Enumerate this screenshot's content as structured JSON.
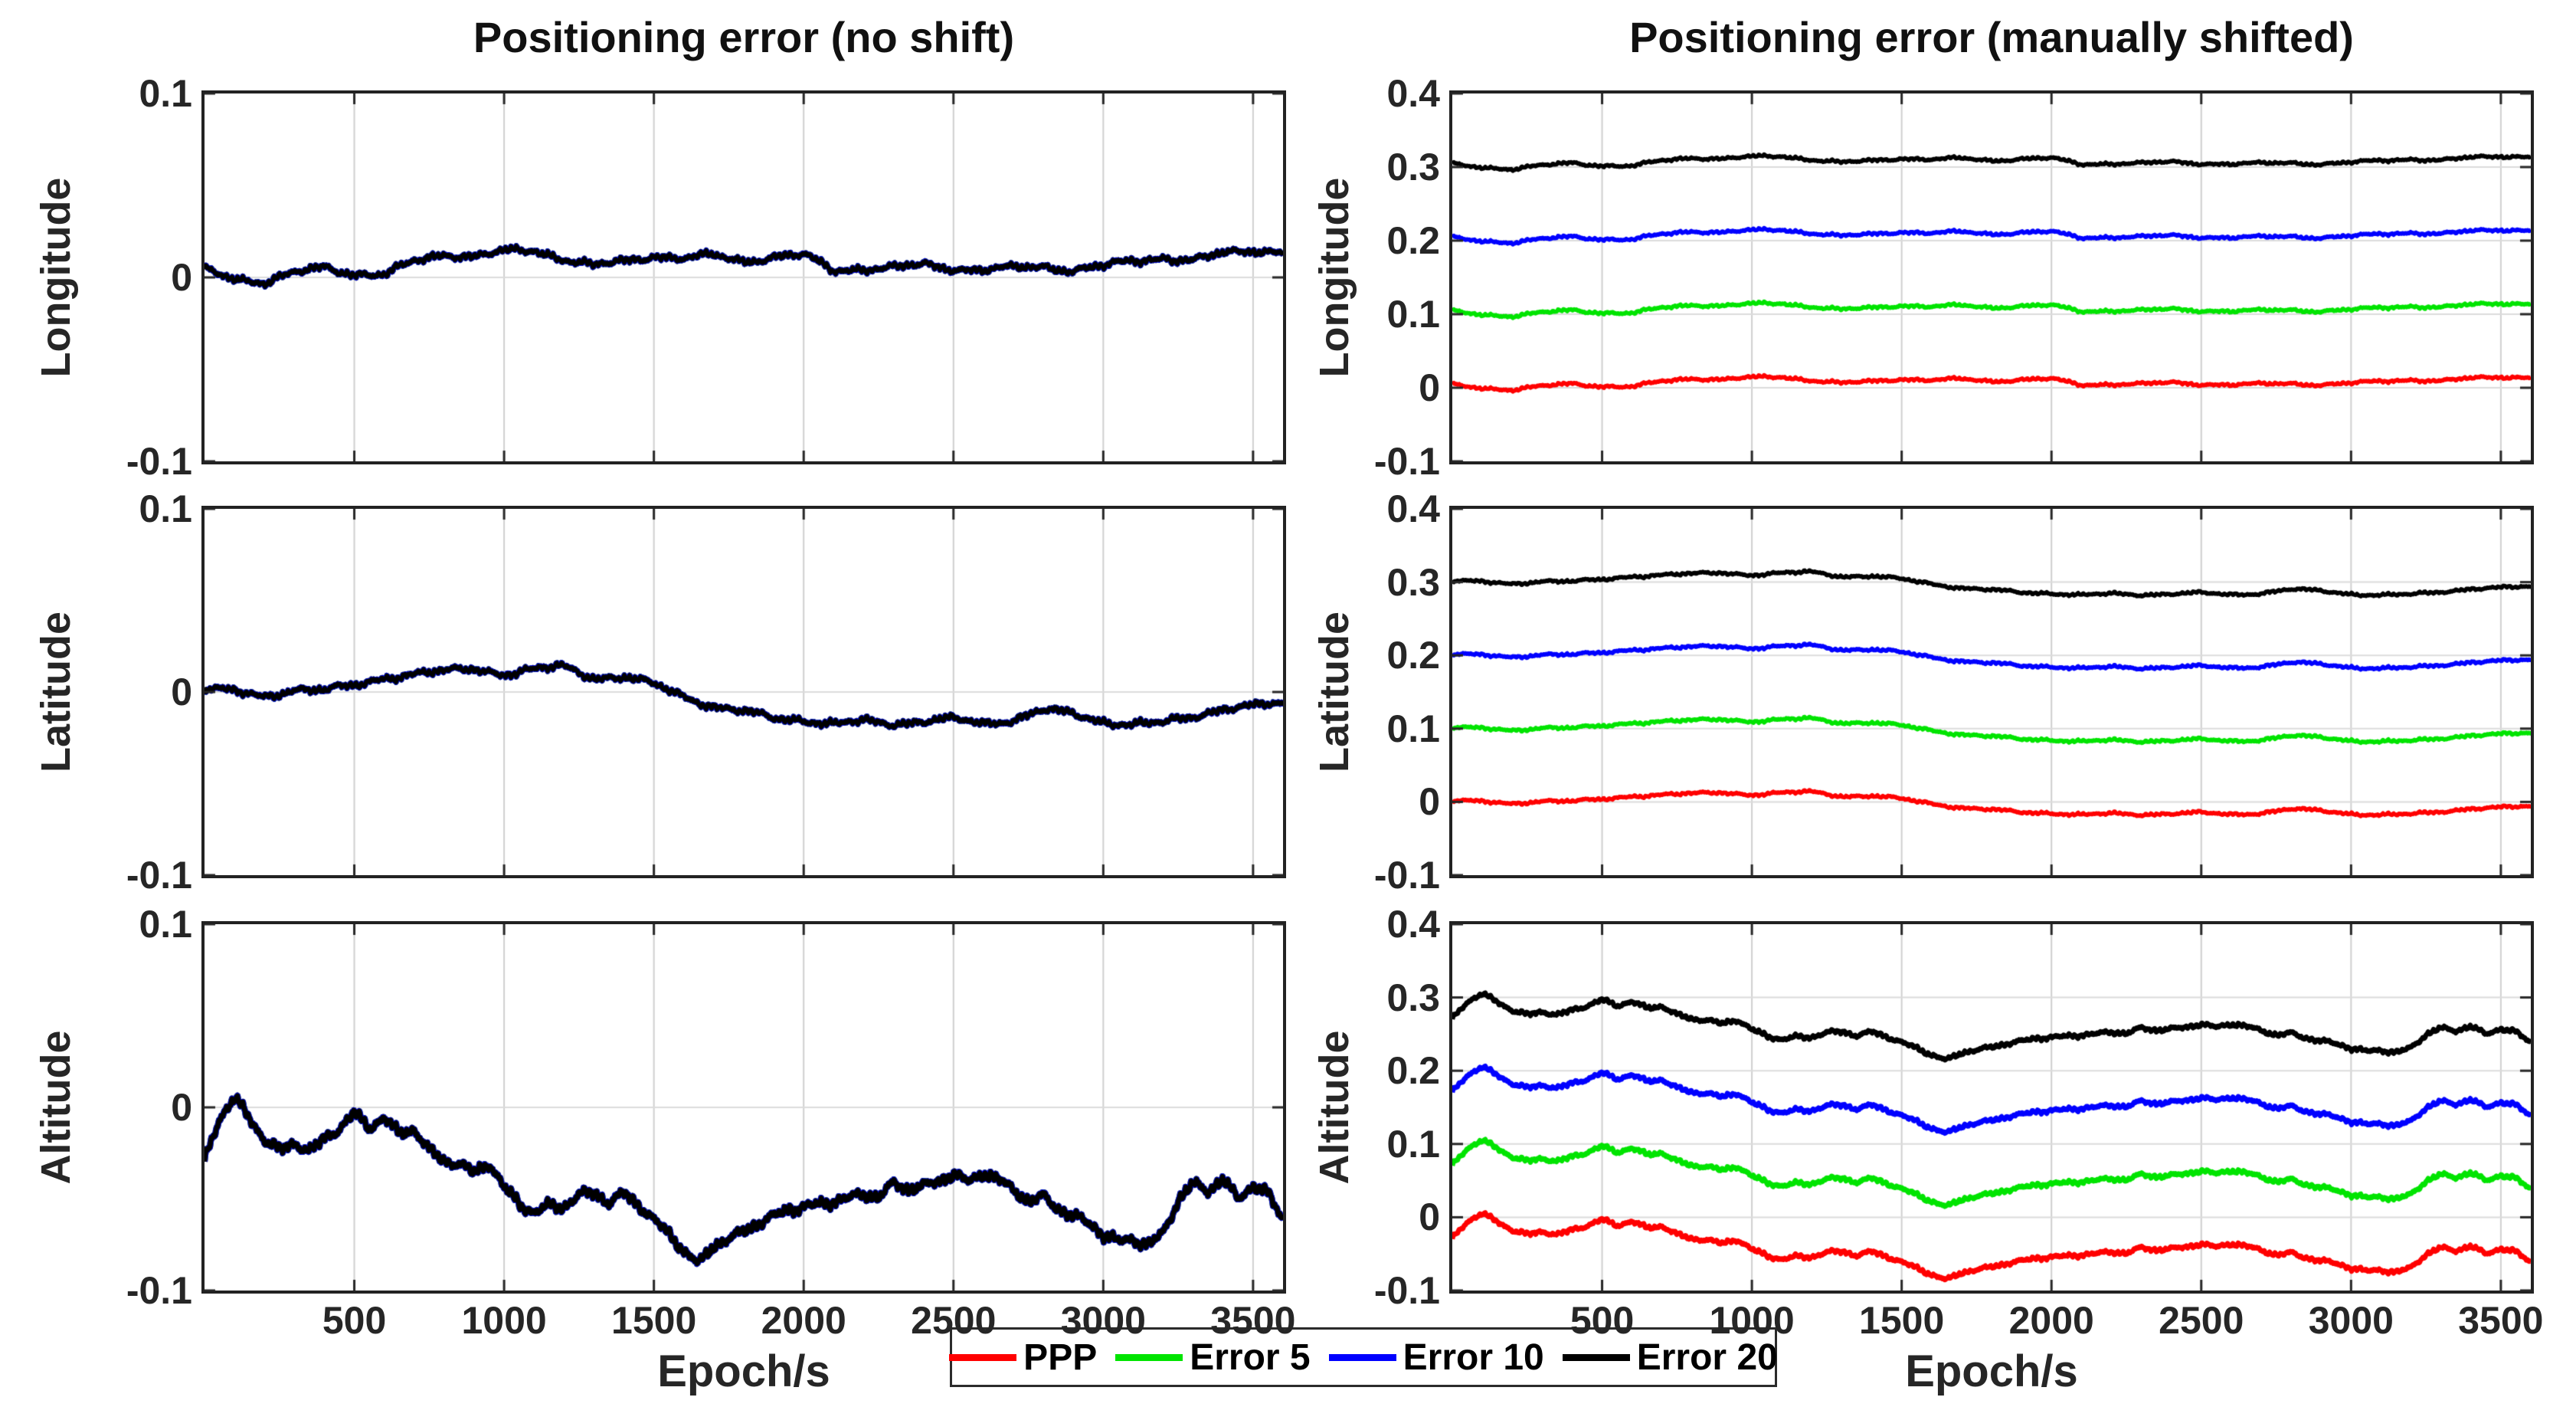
{
  "figure": {
    "background": "#ffffff"
  },
  "chart_data": {
    "type": "line",
    "xlabel": "Epoch/s",
    "xlim": [
      0,
      3600
    ],
    "xticks": [
      500,
      1000,
      1500,
      2000,
      2500,
      3000,
      3500
    ],
    "grid": true,
    "columns": [
      {
        "title": "Positioning error (no shift)",
        "ylim": [
          -0.1,
          0.1
        ],
        "yticks": [
          0.1,
          0,
          -0.1
        ],
        "series_offsets": [
          0,
          0,
          0,
          0
        ]
      },
      {
        "title": "Positioning error (manually shifted)",
        "ylim": [
          -0.1,
          0.4
        ],
        "yticks": [
          0.4,
          0.3,
          0.2,
          0.1,
          0,
          -0.1
        ],
        "series_offsets": [
          0,
          0.1,
          0.2,
          0.3
        ]
      }
    ],
    "series": [
      {
        "name": "PPP",
        "color": "#ff0000"
      },
      {
        "name": "Error 5",
        "color": "#00e400"
      },
      {
        "name": "Error 10",
        "color": "#0000ff"
      },
      {
        "name": "Error 20",
        "color": "#000000"
      }
    ],
    "rows": [
      {
        "ylabel": "Longitude",
        "x_start": 0,
        "x_step": 100,
        "base_y": [
          0.004,
          0.0,
          -0.003,
          0.002,
          0.006,
          0.002,
          0.001,
          0.009,
          0.013,
          0.011,
          0.014,
          0.015,
          0.01,
          0.006,
          0.009,
          0.012,
          0.01,
          0.012,
          0.009,
          0.011,
          0.012,
          0.004,
          0.005,
          0.005,
          0.007,
          0.005,
          0.004,
          0.005,
          0.006,
          0.004,
          0.006,
          0.009,
          0.011,
          0.009,
          0.013,
          0.015,
          0.014
        ],
        "noise_amp": 0.0022,
        "noise_jitter": 0.0011
      },
      {
        "ylabel": "Latitude",
        "x_start": 0,
        "x_step": 100,
        "base_y": [
          0.003,
          0.0,
          -0.003,
          0.002,
          0.001,
          0.003,
          0.008,
          0.01,
          0.011,
          0.013,
          0.01,
          0.012,
          0.014,
          0.008,
          0.008,
          0.004,
          -0.002,
          -0.008,
          -0.011,
          -0.014,
          -0.015,
          -0.018,
          -0.016,
          -0.017,
          -0.016,
          -0.015,
          -0.017,
          -0.015,
          -0.01,
          -0.012,
          -0.016,
          -0.018,
          -0.017,
          -0.013,
          -0.009,
          -0.008,
          -0.006
        ],
        "noise_amp": 0.0022,
        "noise_jitter": 0.0011
      },
      {
        "ylabel": "Altitude",
        "x_start": 0,
        "x_step": 50,
        "base_y": [
          -0.03,
          -0.005,
          0.007,
          -0.005,
          -0.018,
          -0.025,
          -0.021,
          -0.024,
          -0.016,
          -0.01,
          -0.002,
          -0.012,
          -0.007,
          -0.016,
          -0.012,
          -0.022,
          -0.028,
          -0.03,
          -0.037,
          -0.032,
          -0.045,
          -0.052,
          -0.056,
          -0.052,
          -0.054,
          -0.049,
          -0.048,
          -0.053,
          -0.046,
          -0.052,
          -0.06,
          -0.069,
          -0.08,
          -0.087,
          -0.076,
          -0.071,
          -0.066,
          -0.062,
          -0.06,
          -0.057,
          -0.056,
          -0.053,
          -0.05,
          -0.048,
          -0.046,
          -0.05,
          -0.043,
          -0.046,
          -0.043,
          -0.039,
          -0.035,
          -0.04,
          -0.037,
          -0.041,
          -0.046,
          -0.051,
          -0.047,
          -0.054,
          -0.059,
          -0.064,
          -0.071,
          -0.074,
          -0.071,
          -0.074,
          -0.067,
          -0.051,
          -0.043,
          -0.047,
          -0.04,
          -0.049,
          -0.041,
          -0.046,
          -0.062
        ],
        "noise_amp": 0.0035,
        "noise_jitter": 0.0018
      }
    ],
    "legend": {
      "position": "bottom-center",
      "entries": [
        "PPP",
        "Error 5",
        "Error 10",
        "Error 20"
      ]
    },
    "style": {
      "grid_color_vertical": "#cfcfcf",
      "grid_color_horizontal": "#dbdbdb",
      "axis_color": "#222222",
      "tick_color": "#262626"
    }
  }
}
